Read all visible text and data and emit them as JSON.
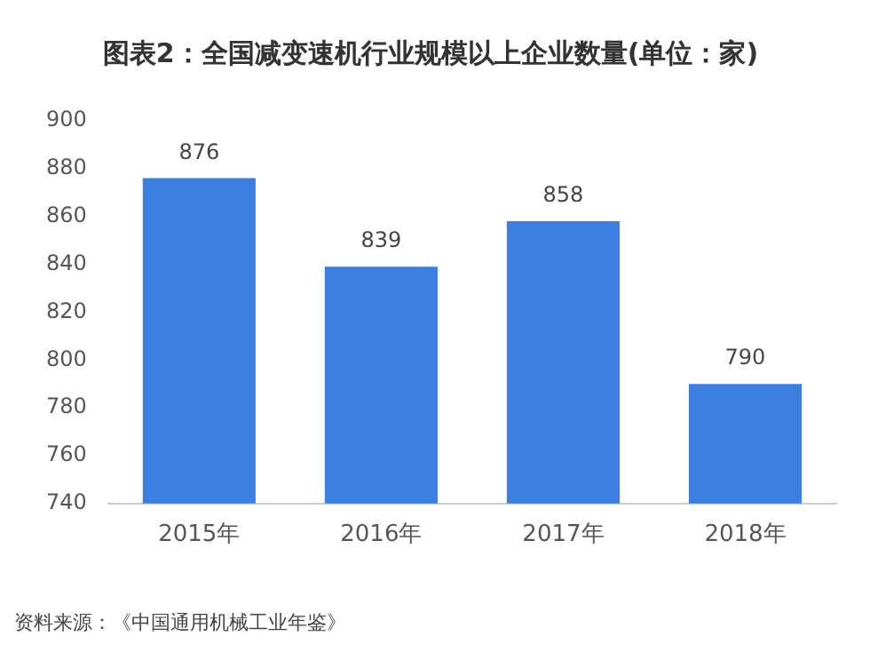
{
  "chart_data": {
    "type": "bar",
    "title": "图表2：全国减变速机行业规模以上企业数量(单位：家)",
    "categories": [
      "2015年",
      "2016年",
      "2017年",
      "2018年"
    ],
    "values": [
      876,
      839,
      858,
      790
    ],
    "color": "#3d7fe0",
    "ylim": [
      740,
      900
    ],
    "yticks": [
      740,
      760,
      780,
      800,
      820,
      840,
      860,
      880,
      900
    ],
    "grid": false,
    "data_labels": true,
    "legend": false,
    "annotations": [
      "资料来源：《中国通用机械工业年鉴》"
    ]
  }
}
